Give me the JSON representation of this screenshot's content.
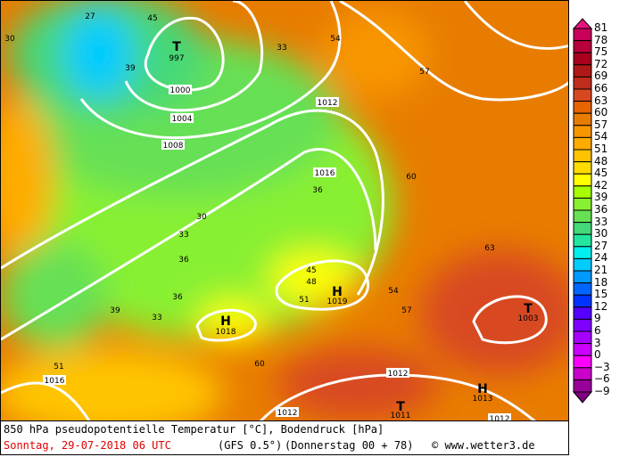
{
  "footer": {
    "title": "850 hPa pseudopotentielle Temperatur [°C], Bodendruck [hPa]",
    "date": "Sonntag, 29-07-2018  06 UTC",
    "model": "(GFS 0.5°)",
    "run": "(Donnerstag 00 + 78)",
    "credit": "© www.wetter3.de"
  },
  "legend": {
    "labels": [
      "81",
      "78",
      "75",
      "72",
      "69",
      "66",
      "63",
      "60",
      "57",
      "54",
      "51",
      "48",
      "45",
      "42",
      "39",
      "36",
      "33",
      "30",
      "27",
      "24",
      "21",
      "18",
      "15",
      "12",
      "9",
      "6",
      "3",
      "0",
      "−3",
      "−6",
      "−9"
    ],
    "colors": [
      "#c8005a",
      "#b8003a",
      "#a8001e",
      "#b01818",
      "#c02c1c",
      "#d84820",
      "#e86400",
      "#e87c00",
      "#f89600",
      "#ffac00",
      "#ffc400",
      "#ffdc00",
      "#ffff00",
      "#a8ff00",
      "#88f030",
      "#66e055",
      "#44d878",
      "#22e6a0",
      "#00eeee",
      "#00ccff",
      "#0099ff",
      "#0066ff",
      "#0033ff",
      "#5500ff",
      "#8000ff",
      "#a800ff",
      "#cc00ff",
      "#ff00ff",
      "#cc00cc",
      "#990099"
    ],
    "top_color": "#e8117d",
    "bottom_color": "#800080"
  },
  "pressure_centers": [
    {
      "type": "T",
      "value": "997"
    },
    {
      "type": "H",
      "value": "1019"
    },
    {
      "type": "H",
      "value": "1018"
    },
    {
      "type": "T",
      "value": "1003"
    },
    {
      "type": "T",
      "value": "1011"
    },
    {
      "type": "H",
      "value": "1013"
    }
  ],
  "isobar_labels": [
    "1000",
    "1004",
    "1008",
    "1012",
    "1016",
    "1016",
    "1012",
    "1012",
    "1012"
  ],
  "temp_labels": [
    "30",
    "39",
    "45",
    "33",
    "36",
    "33",
    "30",
    "36",
    "27",
    "51",
    "54",
    "57",
    "60",
    "63",
    "57",
    "54",
    "60",
    "45",
    "48",
    "51",
    "36",
    "33",
    "39"
  ]
}
